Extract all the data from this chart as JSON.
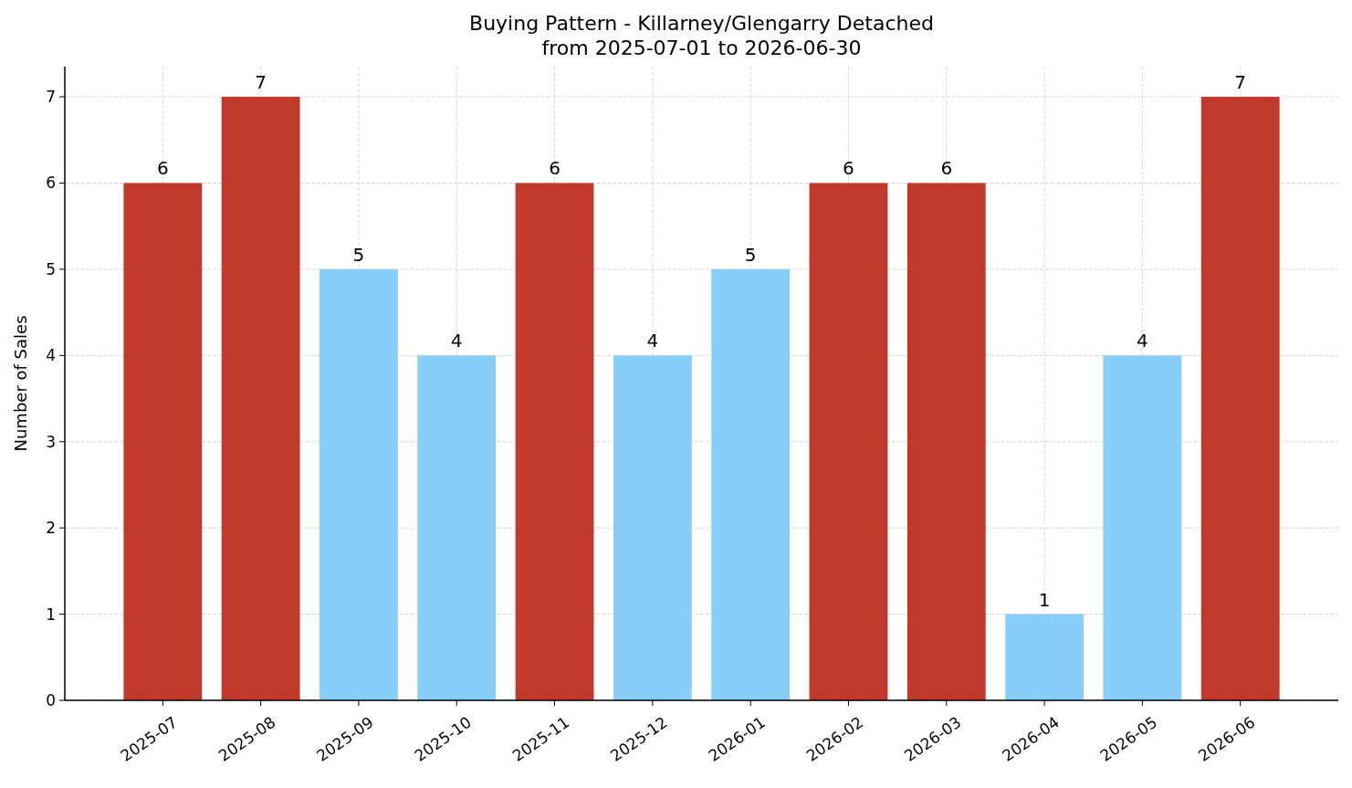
{
  "chart_data": {
    "type": "bar",
    "title": "Buying Pattern - Killarney/Glengarry Detached\nfrom 2025-07-01 to 2026-06-30",
    "ylabel": "Number of Sales",
    "categories": [
      "2025-07",
      "2025-08",
      "2025-09",
      "2025-10",
      "2025-11",
      "2025-12",
      "2026-01",
      "2026-02",
      "2026-03",
      "2026-04",
      "2026-05",
      "2026-06"
    ],
    "values": [
      6,
      7,
      5,
      4,
      6,
      4,
      5,
      6,
      6,
      1,
      4,
      7
    ],
    "colors": [
      "#c0392b",
      "#c0392b",
      "#87cefa",
      "#87cefa",
      "#c0392b",
      "#87cefa",
      "#87cefa",
      "#c0392b",
      "#c0392b",
      "#87cefa",
      "#87cefa",
      "#c0392b"
    ],
    "ylim": [
      0,
      7.35
    ],
    "yticks": [
      0,
      1,
      2,
      3,
      4,
      5,
      6,
      7
    ],
    "grid": true,
    "data_labels": true
  }
}
